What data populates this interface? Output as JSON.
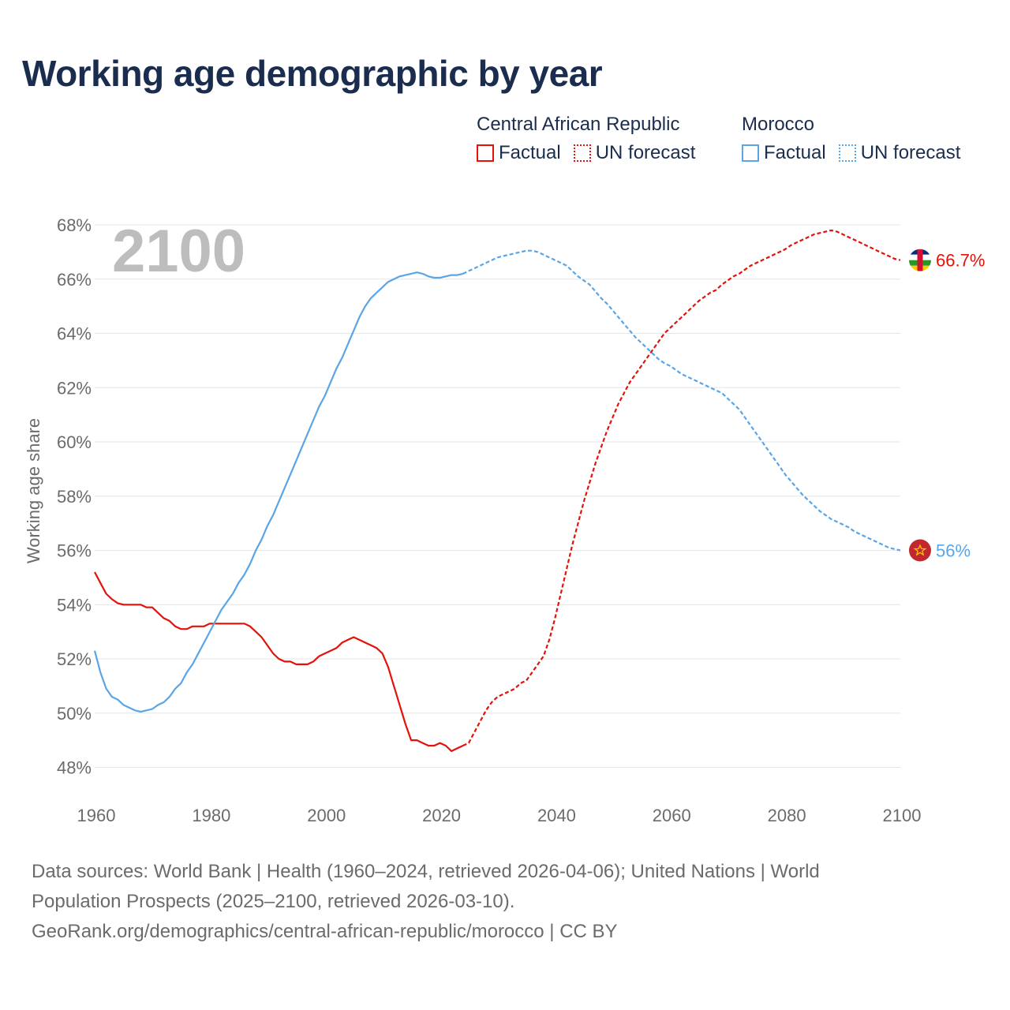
{
  "title": "Working age demographic by year",
  "legend": {
    "groups": [
      {
        "name": "Central African Republic",
        "color": "#e3120b",
        "factual": "Factual",
        "forecast": "UN forecast"
      },
      {
        "name": "Morocco",
        "color": "#5aa5e6",
        "factual": "Factual",
        "forecast": "UN forecast"
      }
    ]
  },
  "chart_data": {
    "type": "line",
    "title": "Working age demographic by year",
    "year_label": "2100",
    "xlabel": "",
    "ylabel": "Working age share",
    "xlim": [
      1960,
      2100
    ],
    "ylim": [
      47.2,
      68
    ],
    "x_ticks": [
      1960,
      1980,
      2000,
      2020,
      2040,
      2060,
      2080,
      2100
    ],
    "y_ticks": [
      48,
      50,
      52,
      54,
      56,
      58,
      60,
      62,
      64,
      66,
      68
    ],
    "y_tick_labels": [
      "48%",
      "50%",
      "52%",
      "54%",
      "56%",
      "58%",
      "60%",
      "62%",
      "64%",
      "66%",
      "68%"
    ],
    "grid": true,
    "series": [
      {
        "name": "Central African Republic",
        "color": "#e3120b",
        "end_label": "66.7%",
        "factual": [
          [
            1960,
            55.2
          ],
          [
            1961,
            54.8
          ],
          [
            1962,
            54.4
          ],
          [
            1963,
            54.2
          ],
          [
            1964,
            54.05
          ],
          [
            1965,
            54.0
          ],
          [
            1966,
            54.0
          ],
          [
            1967,
            54.0
          ],
          [
            1968,
            54.0
          ],
          [
            1969,
            53.9
          ],
          [
            1970,
            53.9
          ],
          [
            1971,
            53.7
          ],
          [
            1972,
            53.5
          ],
          [
            1973,
            53.4
          ],
          [
            1974,
            53.2
          ],
          [
            1975,
            53.1
          ],
          [
            1976,
            53.1
          ],
          [
            1977,
            53.2
          ],
          [
            1978,
            53.2
          ],
          [
            1979,
            53.2
          ],
          [
            1980,
            53.3
          ],
          [
            1981,
            53.3
          ],
          [
            1982,
            53.3
          ],
          [
            1983,
            53.3
          ],
          [
            1984,
            53.3
          ],
          [
            1985,
            53.3
          ],
          [
            1986,
            53.3
          ],
          [
            1987,
            53.2
          ],
          [
            1988,
            53.0
          ],
          [
            1989,
            52.8
          ],
          [
            1990,
            52.5
          ],
          [
            1991,
            52.2
          ],
          [
            1992,
            52.0
          ],
          [
            1993,
            51.9
          ],
          [
            1994,
            51.9
          ],
          [
            1995,
            51.8
          ],
          [
            1996,
            51.8
          ],
          [
            1997,
            51.8
          ],
          [
            1998,
            51.9
          ],
          [
            1999,
            52.1
          ],
          [
            2000,
            52.2
          ],
          [
            2001,
            52.3
          ],
          [
            2002,
            52.4
          ],
          [
            2003,
            52.6
          ],
          [
            2004,
            52.7
          ],
          [
            2005,
            52.8
          ],
          [
            2006,
            52.7
          ],
          [
            2007,
            52.6
          ],
          [
            2008,
            52.5
          ],
          [
            2009,
            52.4
          ],
          [
            2010,
            52.2
          ],
          [
            2011,
            51.7
          ],
          [
            2012,
            51.0
          ],
          [
            2013,
            50.3
          ],
          [
            2014,
            49.6
          ],
          [
            2015,
            49.0
          ],
          [
            2016,
            49.0
          ],
          [
            2017,
            48.9
          ],
          [
            2018,
            48.8
          ],
          [
            2019,
            48.8
          ],
          [
            2020,
            48.9
          ],
          [
            2021,
            48.8
          ],
          [
            2022,
            48.6
          ],
          [
            2023,
            48.7
          ],
          [
            2024,
            48.8
          ]
        ],
        "forecast": [
          [
            2024,
            48.8
          ],
          [
            2025,
            48.9
          ],
          [
            2026,
            49.3
          ],
          [
            2027,
            49.7
          ],
          [
            2028,
            50.1
          ],
          [
            2029,
            50.4
          ],
          [
            2030,
            50.6
          ],
          [
            2031,
            50.7
          ],
          [
            2032,
            50.8
          ],
          [
            2033,
            50.9
          ],
          [
            2034,
            51.1
          ],
          [
            2035,
            51.2
          ],
          [
            2036,
            51.5
          ],
          [
            2037,
            51.8
          ],
          [
            2038,
            52.1
          ],
          [
            2039,
            52.7
          ],
          [
            2040,
            53.5
          ],
          [
            2041,
            54.4
          ],
          [
            2042,
            55.3
          ],
          [
            2043,
            56.2
          ],
          [
            2044,
            57.0
          ],
          [
            2045,
            57.8
          ],
          [
            2046,
            58.5
          ],
          [
            2047,
            59.2
          ],
          [
            2048,
            59.8
          ],
          [
            2049,
            60.4
          ],
          [
            2050,
            60.9
          ],
          [
            2051,
            61.4
          ],
          [
            2052,
            61.8
          ],
          [
            2053,
            62.2
          ],
          [
            2054,
            62.5
          ],
          [
            2055,
            62.8
          ],
          [
            2056,
            63.1
          ],
          [
            2057,
            63.4
          ],
          [
            2058,
            63.7
          ],
          [
            2059,
            64.0
          ],
          [
            2060,
            64.2
          ],
          [
            2061,
            64.4
          ],
          [
            2062,
            64.6
          ],
          [
            2063,
            64.8
          ],
          [
            2064,
            65.0
          ],
          [
            2065,
            65.2
          ],
          [
            2066,
            65.35
          ],
          [
            2067,
            65.5
          ],
          [
            2068,
            65.6
          ],
          [
            2069,
            65.8
          ],
          [
            2070,
            65.95
          ],
          [
            2071,
            66.1
          ],
          [
            2072,
            66.2
          ],
          [
            2073,
            66.35
          ],
          [
            2074,
            66.5
          ],
          [
            2075,
            66.6
          ],
          [
            2076,
            66.7
          ],
          [
            2077,
            66.8
          ],
          [
            2078,
            66.9
          ],
          [
            2079,
            67.0
          ],
          [
            2080,
            67.1
          ],
          [
            2081,
            67.25
          ],
          [
            2082,
            67.35
          ],
          [
            2083,
            67.45
          ],
          [
            2084,
            67.55
          ],
          [
            2085,
            67.65
          ],
          [
            2086,
            67.7
          ],
          [
            2087,
            67.75
          ],
          [
            2088,
            67.8
          ],
          [
            2089,
            67.75
          ],
          [
            2090,
            67.65
          ],
          [
            2091,
            67.55
          ],
          [
            2092,
            67.45
          ],
          [
            2093,
            67.35
          ],
          [
            2094,
            67.25
          ],
          [
            2095,
            67.15
          ],
          [
            2096,
            67.05
          ],
          [
            2097,
            66.95
          ],
          [
            2098,
            66.85
          ],
          [
            2099,
            66.75
          ],
          [
            2100,
            66.7
          ]
        ]
      },
      {
        "name": "Morocco",
        "color": "#5aa5e6",
        "end_label": "56%",
        "factual": [
          [
            1960,
            52.3
          ],
          [
            1961,
            51.5
          ],
          [
            1962,
            50.9
          ],
          [
            1963,
            50.6
          ],
          [
            1964,
            50.5
          ],
          [
            1965,
            50.3
          ],
          [
            1966,
            50.2
          ],
          [
            1967,
            50.1
          ],
          [
            1968,
            50.05
          ],
          [
            1969,
            50.1
          ],
          [
            1970,
            50.15
          ],
          [
            1971,
            50.3
          ],
          [
            1972,
            50.4
          ],
          [
            1973,
            50.6
          ],
          [
            1974,
            50.9
          ],
          [
            1975,
            51.1
          ],
          [
            1976,
            51.5
          ],
          [
            1977,
            51.8
          ],
          [
            1978,
            52.2
          ],
          [
            1979,
            52.6
          ],
          [
            1980,
            53.0
          ],
          [
            1981,
            53.4
          ],
          [
            1982,
            53.8
          ],
          [
            1983,
            54.1
          ],
          [
            1984,
            54.4
          ],
          [
            1985,
            54.8
          ],
          [
            1986,
            55.1
          ],
          [
            1987,
            55.5
          ],
          [
            1988,
            56.0
          ],
          [
            1989,
            56.4
          ],
          [
            1990,
            56.9
          ],
          [
            1991,
            57.3
          ],
          [
            1992,
            57.8
          ],
          [
            1993,
            58.3
          ],
          [
            1994,
            58.8
          ],
          [
            1995,
            59.3
          ],
          [
            1996,
            59.8
          ],
          [
            1997,
            60.3
          ],
          [
            1998,
            60.8
          ],
          [
            1999,
            61.3
          ],
          [
            2000,
            61.7
          ],
          [
            2001,
            62.2
          ],
          [
            2002,
            62.7
          ],
          [
            2003,
            63.1
          ],
          [
            2004,
            63.6
          ],
          [
            2005,
            64.1
          ],
          [
            2006,
            64.6
          ],
          [
            2007,
            65.0
          ],
          [
            2008,
            65.3
          ],
          [
            2009,
            65.5
          ],
          [
            2010,
            65.7
          ],
          [
            2011,
            65.9
          ],
          [
            2012,
            66.0
          ],
          [
            2013,
            66.1
          ],
          [
            2014,
            66.15
          ],
          [
            2015,
            66.2
          ],
          [
            2016,
            66.25
          ],
          [
            2017,
            66.2
          ],
          [
            2018,
            66.1
          ],
          [
            2019,
            66.05
          ],
          [
            2020,
            66.05
          ],
          [
            2021,
            66.1
          ],
          [
            2022,
            66.15
          ],
          [
            2023,
            66.15
          ],
          [
            2024,
            66.2
          ]
        ],
        "forecast": [
          [
            2024,
            66.2
          ],
          [
            2025,
            66.3
          ],
          [
            2026,
            66.4
          ],
          [
            2027,
            66.5
          ],
          [
            2028,
            66.6
          ],
          [
            2029,
            66.7
          ],
          [
            2030,
            66.8
          ],
          [
            2031,
            66.85
          ],
          [
            2032,
            66.9
          ],
          [
            2033,
            66.95
          ],
          [
            2034,
            67.0
          ],
          [
            2035,
            67.05
          ],
          [
            2036,
            67.05
          ],
          [
            2037,
            67.0
          ],
          [
            2038,
            66.9
          ],
          [
            2039,
            66.8
          ],
          [
            2040,
            66.7
          ],
          [
            2041,
            66.6
          ],
          [
            2042,
            66.5
          ],
          [
            2043,
            66.3
          ],
          [
            2044,
            66.1
          ],
          [
            2045,
            65.95
          ],
          [
            2046,
            65.8
          ],
          [
            2047,
            65.55
          ],
          [
            2048,
            65.3
          ],
          [
            2049,
            65.1
          ],
          [
            2050,
            64.85
          ],
          [
            2051,
            64.6
          ],
          [
            2052,
            64.35
          ],
          [
            2053,
            64.1
          ],
          [
            2054,
            63.85
          ],
          [
            2055,
            63.65
          ],
          [
            2056,
            63.45
          ],
          [
            2057,
            63.25
          ],
          [
            2058,
            63.05
          ],
          [
            2059,
            62.9
          ],
          [
            2060,
            62.8
          ],
          [
            2061,
            62.65
          ],
          [
            2062,
            62.5
          ],
          [
            2063,
            62.4
          ],
          [
            2064,
            62.3
          ],
          [
            2065,
            62.2
          ],
          [
            2066,
            62.1
          ],
          [
            2067,
            62.0
          ],
          [
            2068,
            61.9
          ],
          [
            2069,
            61.8
          ],
          [
            2070,
            61.6
          ],
          [
            2071,
            61.4
          ],
          [
            2072,
            61.2
          ],
          [
            2073,
            60.9
          ],
          [
            2074,
            60.6
          ],
          [
            2075,
            60.3
          ],
          [
            2076,
            60.0
          ],
          [
            2077,
            59.7
          ],
          [
            2078,
            59.4
          ],
          [
            2079,
            59.1
          ],
          [
            2080,
            58.8
          ],
          [
            2081,
            58.55
          ],
          [
            2082,
            58.3
          ],
          [
            2083,
            58.05
          ],
          [
            2084,
            57.85
          ],
          [
            2085,
            57.65
          ],
          [
            2086,
            57.45
          ],
          [
            2087,
            57.3
          ],
          [
            2088,
            57.15
          ],
          [
            2089,
            57.05
          ],
          [
            2090,
            56.95
          ],
          [
            2091,
            56.85
          ],
          [
            2092,
            56.7
          ],
          [
            2093,
            56.6
          ],
          [
            2094,
            56.5
          ],
          [
            2095,
            56.4
          ],
          [
            2096,
            56.3
          ],
          [
            2097,
            56.2
          ],
          [
            2098,
            56.1
          ],
          [
            2099,
            56.05
          ],
          [
            2100,
            56.0
          ]
        ]
      }
    ]
  },
  "footer": {
    "line1": "Data sources: World Bank | Health (1960–2024, retrieved 2026-04-06); United Nations | World",
    "line2": "Population Prospects (2025–2100, retrieved 2026-03-10).",
    "line3": "GeoRank.org/demographics/central-african-republic/morocco | CC BY"
  },
  "flags": {
    "car": {
      "icon": "central-african-republic-flag-icon",
      "colors": [
        "#003082",
        "#ffffff",
        "#289728",
        "#ffce00",
        "#d21034"
      ]
    },
    "morocco": {
      "icon": "morocco-flag-icon",
      "colors": [
        "#c1272d",
        "#f7c400"
      ]
    }
  }
}
